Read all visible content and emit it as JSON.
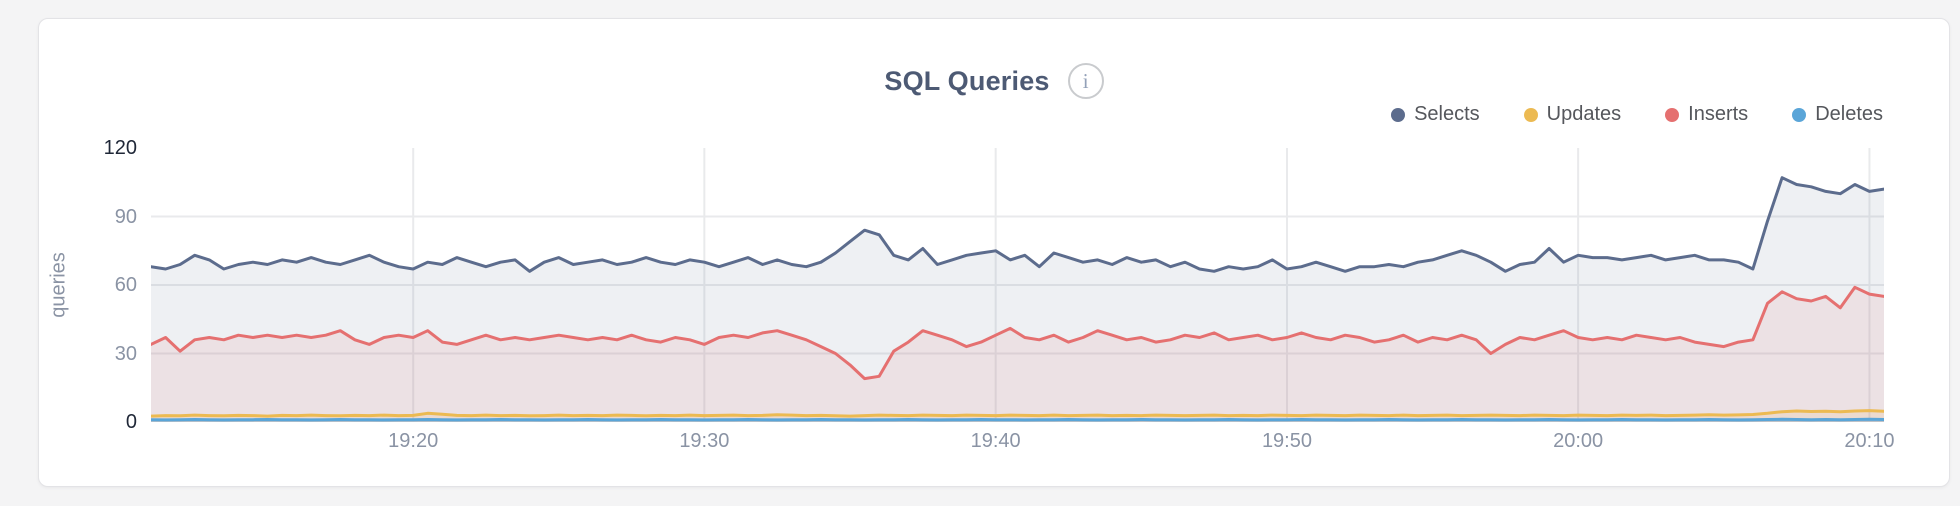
{
  "header": {
    "title": "SQL Queries",
    "info_glyph": "i"
  },
  "chart_data": {
    "type": "area",
    "title": "SQL Queries",
    "xlabel": "",
    "ylabel": "queries",
    "ylim": [
      0,
      120
    ],
    "y_ticks": [
      0,
      30,
      60,
      90,
      120
    ],
    "grid": true,
    "legend_position": "top-right",
    "x_start": "19:11",
    "x_interval_seconds": 30,
    "x_ticks": [
      {
        "label": "19:20",
        "pos": 0.1513
      },
      {
        "label": "19:30",
        "pos": 0.3193
      },
      {
        "label": "19:40",
        "pos": 0.4874
      },
      {
        "label": "19:50",
        "pos": 0.6555
      },
      {
        "label": "20:00",
        "pos": 0.8235
      },
      {
        "label": "20:10",
        "pos": 0.9916
      }
    ],
    "series": [
      {
        "name": "Selects",
        "color": "#5c6c8d",
        "fill": "rgba(92,108,141,0.10)",
        "values": [
          68,
          67,
          69,
          73,
          71,
          67,
          69,
          70,
          69,
          71,
          70,
          72,
          70,
          69,
          71,
          73,
          70,
          68,
          67,
          70,
          69,
          72,
          70,
          68,
          70,
          71,
          66,
          70,
          72,
          69,
          70,
          71,
          69,
          70,
          72,
          70,
          69,
          71,
          70,
          68,
          70,
          72,
          69,
          71,
          69,
          68,
          70,
          74,
          79,
          84,
          82,
          73,
          71,
          76,
          69,
          71,
          73,
          74,
          75,
          71,
          73,
          68,
          74,
          72,
          70,
          71,
          69,
          72,
          70,
          71,
          68,
          70,
          67,
          66,
          68,
          67,
          68,
          71,
          67,
          68,
          70,
          68,
          66,
          68,
          68,
          69,
          68,
          70,
          71,
          73,
          75,
          73,
          70,
          66,
          69,
          70,
          76,
          70,
          73,
          72,
          72,
          71,
          72,
          73,
          71,
          72,
          73,
          71,
          71,
          70,
          67,
          88,
          107,
          104,
          103,
          101,
          100,
          104,
          101,
          102
        ]
      },
      {
        "name": "Updates",
        "color": "#ecba52",
        "fill": "rgba(236,186,82,0.14)",
        "values": [
          2.6,
          2.8,
          2.7,
          3.0,
          2.8,
          2.7,
          2.9,
          2.8,
          2.6,
          2.9,
          2.8,
          3.0,
          2.8,
          2.7,
          2.9,
          2.8,
          3.0,
          2.8,
          2.9,
          3.8,
          3.4,
          2.9,
          2.8,
          3.0,
          2.8,
          2.9,
          2.7,
          2.8,
          3.0,
          2.8,
          2.9,
          2.8,
          3.0,
          2.9,
          2.7,
          2.9,
          2.8,
          3.0,
          2.8,
          2.9,
          3.0,
          2.8,
          2.9,
          3.2,
          3.0,
          2.8,
          2.9,
          2.7,
          2.6,
          2.8,
          3.0,
          2.9,
          2.8,
          3.0,
          2.9,
          2.8,
          3.0,
          2.9,
          2.8,
          3.0,
          2.9,
          2.8,
          3.0,
          2.8,
          2.9,
          3.0,
          2.8,
          2.9,
          2.8,
          3.0,
          2.9,
          2.8,
          2.9,
          3.0,
          2.8,
          2.9,
          2.8,
          3.0,
          2.9,
          2.8,
          3.0,
          2.9,
          2.8,
          3.0,
          2.9,
          2.8,
          3.0,
          2.8,
          2.9,
          3.0,
          2.8,
          2.9,
          3.0,
          2.9,
          2.8,
          3.0,
          2.9,
          2.8,
          3.0,
          2.9,
          2.8,
          3.0,
          2.9,
          3.0,
          2.8,
          2.9,
          3.0,
          3.2,
          3.0,
          3.1,
          3.3,
          3.8,
          4.5,
          4.8,
          4.6,
          4.7,
          4.5,
          4.8,
          5.0,
          4.7
        ]
      },
      {
        "name": "Inserts",
        "color": "#e57070",
        "fill": "rgba(229,112,112,0.11)",
        "values": [
          34,
          37,
          31,
          36,
          37,
          36,
          38,
          37,
          38,
          37,
          38,
          37,
          38,
          40,
          36,
          34,
          37,
          38,
          37,
          40,
          35,
          34,
          36,
          38,
          36,
          37,
          36,
          37,
          38,
          37,
          36,
          37,
          36,
          38,
          36,
          35,
          37,
          36,
          34,
          37,
          38,
          37,
          39,
          40,
          38,
          36,
          33,
          30,
          25,
          19,
          20,
          31,
          35,
          40,
          38,
          36,
          33,
          35,
          38,
          41,
          37,
          36,
          38,
          35,
          37,
          40,
          38,
          36,
          37,
          35,
          36,
          38,
          37,
          39,
          36,
          37,
          38,
          36,
          37,
          39,
          37,
          36,
          38,
          37,
          35,
          36,
          38,
          35,
          37,
          36,
          38,
          36,
          30,
          34,
          37,
          36,
          38,
          40,
          37,
          36,
          37,
          36,
          38,
          37,
          36,
          37,
          35,
          34,
          33,
          35,
          36,
          52,
          57,
          54,
          53,
          55,
          50,
          59,
          56,
          55
        ]
      },
      {
        "name": "Deletes",
        "color": "#5aa5d8",
        "fill": "rgba(90,165,216,0.22)",
        "values": [
          1.0,
          0.9,
          1.0,
          1.1,
          1.0,
          0.9,
          1.0,
          1.0,
          1.1,
          1.0,
          1.0,
          0.9,
          1.0,
          1.1,
          1.0,
          1.0,
          0.9,
          1.0,
          1.0,
          1.1,
          1.0,
          0.9,
          1.0,
          1.0,
          1.1,
          1.0,
          1.0,
          0.9,
          1.0,
          1.0,
          1.1,
          1.0,
          0.9,
          1.0,
          1.0,
          1.1,
          1.0,
          1.0,
          0.9,
          1.0,
          1.0,
          1.1,
          1.0,
          0.9,
          1.0,
          1.0,
          1.1,
          1.0,
          1.0,
          0.9,
          1.0,
          1.0,
          1.1,
          1.0,
          0.9,
          1.0,
          1.0,
          1.1,
          1.0,
          1.0,
          0.9,
          1.0,
          1.0,
          1.1,
          1.0,
          0.9,
          1.0,
          1.0,
          1.1,
          1.0,
          1.0,
          0.9,
          1.0,
          1.0,
          1.1,
          1.0,
          0.9,
          1.0,
          1.0,
          1.1,
          1.0,
          1.0,
          0.9,
          1.0,
          1.0,
          1.1,
          1.0,
          0.9,
          1.0,
          1.0,
          1.1,
          1.0,
          1.0,
          0.9,
          1.0,
          1.0,
          1.1,
          1.0,
          0.9,
          1.0,
          1.0,
          1.1,
          1.0,
          1.0,
          0.9,
          1.0,
          1.0,
          1.1,
          1.0,
          0.9,
          1.0,
          1.1,
          1.2,
          1.1,
          1.0,
          1.1,
          1.0,
          1.1,
          1.2,
          1.1
        ]
      }
    ]
  }
}
